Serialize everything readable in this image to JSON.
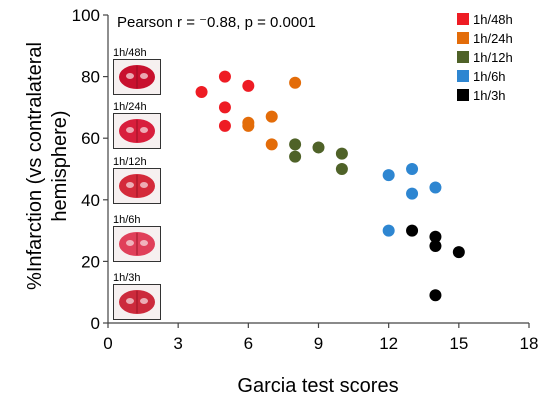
{
  "chart_data": {
    "type": "scatter",
    "annotation": "Pearson r = ⁻0.88, p = 0.0001",
    "xlabel": "Garcia test scores",
    "ylabel": "%Infarction (vs contralateral hemisphere)",
    "ylabel_lines": [
      "%Infarction (vs contralateral",
      "hemisphere)"
    ],
    "xlim": [
      0,
      18
    ],
    "ylim": [
      0,
      100
    ],
    "xticks": [
      0,
      3,
      6,
      9,
      12,
      15,
      18
    ],
    "yticks": [
      0,
      20,
      40,
      60,
      80,
      100
    ],
    "grid": false,
    "legend_position": "top-right",
    "series": [
      {
        "name": "1h/48h",
        "color": "#ee1c24",
        "points": [
          [
            4,
            75
          ],
          [
            5,
            80
          ],
          [
            5,
            70
          ],
          [
            5,
            64
          ],
          [
            6,
            77
          ]
        ]
      },
      {
        "name": "1h/24h",
        "color": "#e36c09",
        "points": [
          [
            6,
            65
          ],
          [
            6,
            64
          ],
          [
            7,
            67
          ],
          [
            7,
            58
          ],
          [
            8,
            78
          ]
        ]
      },
      {
        "name": "1h/12h",
        "color": "#4f6228",
        "points": [
          [
            8,
            58
          ],
          [
            8,
            54
          ],
          [
            9,
            57
          ],
          [
            10,
            55
          ],
          [
            10,
            50
          ]
        ]
      },
      {
        "name": "1h/6h",
        "color": "#2e86d1",
        "points": [
          [
            12,
            48
          ],
          [
            12,
            30
          ],
          [
            13,
            50
          ],
          [
            13,
            42
          ],
          [
            14,
            44
          ]
        ]
      },
      {
        "name": "1h/3h",
        "color": "#000000",
        "points": [
          [
            13,
            30
          ],
          [
            14,
            28
          ],
          [
            14,
            25
          ],
          [
            14,
            9
          ],
          [
            15,
            23
          ]
        ]
      }
    ]
  },
  "brain_images": [
    {
      "label": "1h/48h",
      "tint": "#c8102e"
    },
    {
      "label": "1h/24h",
      "tint": "#d81e3c"
    },
    {
      "label": "1h/12h",
      "tint": "#d42a3a"
    },
    {
      "label": "1h/6h",
      "tint": "#e0405a"
    },
    {
      "label": "1h/3h",
      "tint": "#cc2a3c"
    }
  ]
}
